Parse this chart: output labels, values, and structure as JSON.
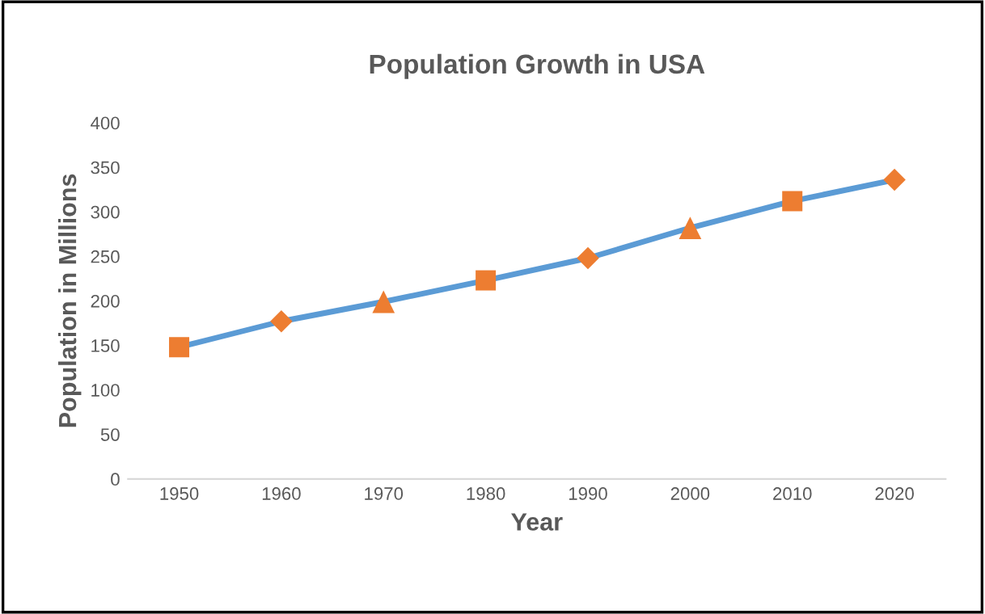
{
  "chart_data": {
    "type": "line",
    "title": "Population Growth in USA",
    "xlabel": "Year",
    "ylabel": "Population in Millions",
    "categories": [
      "1950",
      "1960",
      "1970",
      "1980",
      "1990",
      "2000",
      "2010",
      "2020"
    ],
    "series": [
      {
        "color": "#5b9bd5",
        "marker": "none",
        "values": [
          148,
          177,
          199,
          223,
          248,
          282,
          312,
          336
        ]
      },
      {
        "type": "scatter",
        "color": "#ed7d31",
        "marker": "square",
        "values": [
          148,
          null,
          null,
          223,
          null,
          null,
          312,
          null
        ]
      },
      {
        "type": "scatter",
        "color": "#ed7d31",
        "marker": "diamond",
        "values": [
          null,
          177,
          null,
          null,
          248,
          null,
          null,
          336
        ]
      },
      {
        "type": "scatter",
        "color": "#ed7d31",
        "marker": "triangle",
        "values": [
          null,
          null,
          199,
          null,
          null,
          282,
          null,
          null
        ]
      }
    ],
    "ylim": [
      0,
      400
    ],
    "yticks": [
      0,
      50,
      100,
      150,
      200,
      250,
      300,
      350,
      400
    ],
    "grid": false,
    "legend": false
  }
}
